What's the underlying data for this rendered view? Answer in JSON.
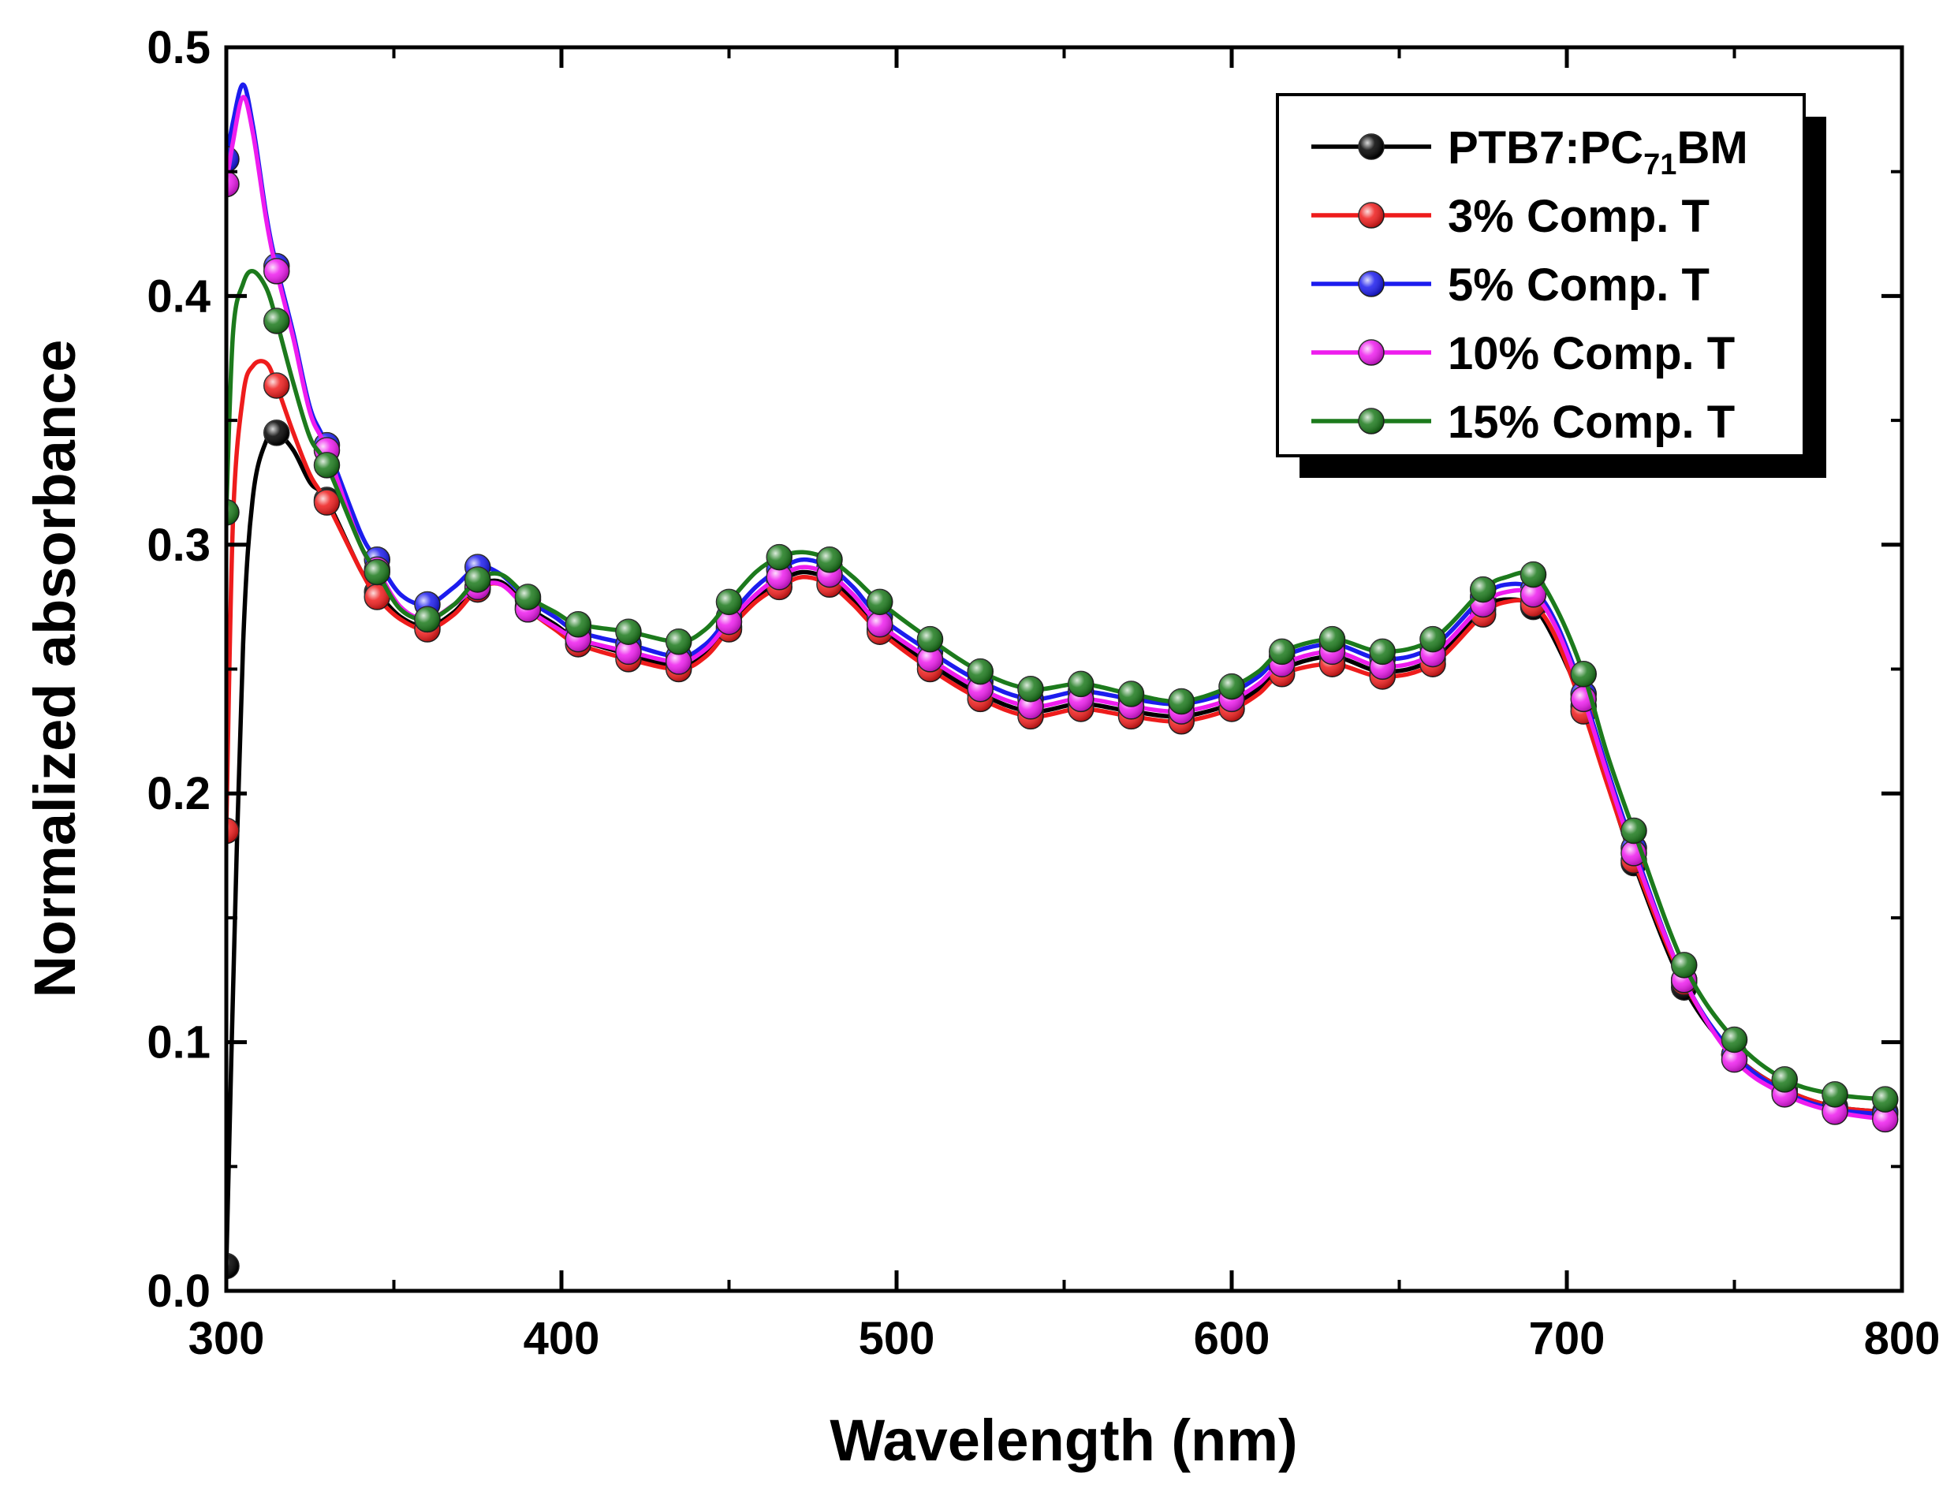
{
  "chart_data": {
    "type": "line",
    "title": "",
    "xlabel": "Wavelength (nm)",
    "ylabel": "Normalized absorbance",
    "xlim": [
      300,
      800
    ],
    "ylim": [
      0.0,
      0.5
    ],
    "x_ticks": [
      300,
      400,
      500,
      600,
      700,
      800
    ],
    "y_ticks": [
      0.0,
      0.1,
      0.2,
      0.3,
      0.4,
      0.5
    ],
    "x_tick_labels": [
      "300",
      "400",
      "500",
      "600",
      "700",
      "800"
    ],
    "y_tick_labels": [
      "0.0",
      "0.1",
      "0.2",
      "0.3",
      "0.4",
      "0.5"
    ],
    "grid": false,
    "legend_position": "top-right",
    "legend": [
      {
        "main": "PTB7:PC",
        "sub": "71",
        "tail": "BM"
      },
      {
        "main": "3% Comp. T",
        "sub": "",
        "tail": ""
      },
      {
        "main": "5% Comp. T",
        "sub": "",
        "tail": ""
      },
      {
        "main": "10% Comp. T",
        "sub": "",
        "tail": ""
      },
      {
        "main": "15% Comp. T",
        "sub": "",
        "tail": ""
      }
    ],
    "series": [
      {
        "name": "PTB7:PC71BM",
        "color": "#000000",
        "x": [
          300,
          302,
          305,
          308,
          312,
          315,
          320,
          325,
          330,
          340,
          345,
          352,
          360,
          368,
          375,
          382,
          390,
          398,
          405,
          420,
          435,
          443,
          450,
          458,
          465,
          472,
          480,
          487,
          495,
          510,
          525,
          540,
          555,
          570,
          585,
          600,
          608,
          615,
          630,
          645,
          660,
          675,
          682,
          690,
          697,
          705,
          712,
          720,
          735,
          750,
          765,
          780,
          795
        ],
        "y": [
          0.01,
          0.12,
          0.26,
          0.32,
          0.342,
          0.345,
          0.338,
          0.325,
          0.318,
          0.29,
          0.281,
          0.271,
          0.267,
          0.273,
          0.283,
          0.285,
          0.275,
          0.268,
          0.262,
          0.256,
          0.251,
          0.256,
          0.267,
          0.278,
          0.285,
          0.289,
          0.286,
          0.278,
          0.266,
          0.252,
          0.24,
          0.233,
          0.236,
          0.233,
          0.231,
          0.236,
          0.242,
          0.25,
          0.255,
          0.249,
          0.254,
          0.274,
          0.278,
          0.275,
          0.26,
          0.235,
          0.205,
          0.172,
          0.122,
          0.095,
          0.081,
          0.074,
          0.072
        ],
        "marker_x": [
          300,
          315,
          330,
          345,
          360,
          375,
          390,
          405,
          420,
          435,
          450,
          465,
          480,
          495,
          510,
          525,
          540,
          555,
          570,
          585,
          600,
          615,
          630,
          645,
          660,
          675,
          690,
          705,
          720,
          735,
          750,
          765,
          780,
          795
        ]
      },
      {
        "name": "3% Comp. T",
        "color": "#ee1c1c",
        "x": [
          300,
          302,
          305,
          308,
          312,
          315,
          320,
          325,
          330,
          340,
          345,
          352,
          360,
          368,
          375,
          382,
          390,
          398,
          405,
          420,
          435,
          443,
          450,
          458,
          465,
          472,
          480,
          487,
          495,
          510,
          525,
          540,
          555,
          570,
          585,
          600,
          608,
          615,
          630,
          645,
          660,
          675,
          682,
          690,
          697,
          705,
          712,
          720,
          735,
          750,
          765,
          780,
          795
        ],
        "y": [
          0.185,
          0.31,
          0.36,
          0.372,
          0.373,
          0.364,
          0.345,
          0.328,
          0.317,
          0.29,
          0.279,
          0.27,
          0.266,
          0.272,
          0.282,
          0.284,
          0.274,
          0.266,
          0.26,
          0.254,
          0.25,
          0.255,
          0.266,
          0.277,
          0.283,
          0.287,
          0.284,
          0.276,
          0.265,
          0.25,
          0.238,
          0.231,
          0.234,
          0.231,
          0.229,
          0.234,
          0.24,
          0.248,
          0.252,
          0.247,
          0.252,
          0.272,
          0.277,
          0.276,
          0.262,
          0.233,
          0.204,
          0.173,
          0.124,
          0.095,
          0.081,
          0.074,
          0.072
        ],
        "marker_x": [
          300,
          315,
          330,
          345,
          360,
          375,
          390,
          405,
          420,
          435,
          450,
          465,
          480,
          495,
          510,
          525,
          540,
          555,
          570,
          585,
          600,
          615,
          630,
          645,
          660,
          675,
          690,
          705,
          720,
          735,
          750,
          765,
          780,
          795
        ]
      },
      {
        "name": "5% Comp. T",
        "color": "#1c1cee",
        "x": [
          300,
          302,
          305,
          308,
          312,
          315,
          320,
          325,
          330,
          340,
          345,
          352,
          360,
          368,
          375,
          382,
          390,
          398,
          405,
          420,
          435,
          443,
          450,
          458,
          465,
          472,
          480,
          487,
          495,
          510,
          525,
          540,
          555,
          570,
          585,
          600,
          608,
          615,
          630,
          645,
          660,
          675,
          682,
          690,
          697,
          705,
          712,
          720,
          735,
          750,
          765,
          780,
          795
        ],
        "y": [
          0.455,
          0.47,
          0.485,
          0.468,
          0.432,
          0.412,
          0.385,
          0.355,
          0.34,
          0.305,
          0.294,
          0.28,
          0.276,
          0.283,
          0.291,
          0.288,
          0.278,
          0.271,
          0.265,
          0.26,
          0.255,
          0.26,
          0.271,
          0.283,
          0.29,
          0.294,
          0.291,
          0.283,
          0.271,
          0.257,
          0.245,
          0.238,
          0.241,
          0.238,
          0.236,
          0.241,
          0.247,
          0.255,
          0.26,
          0.254,
          0.259,
          0.279,
          0.284,
          0.282,
          0.268,
          0.24,
          0.21,
          0.178,
          0.125,
          0.095,
          0.08,
          0.073,
          0.071
        ],
        "marker_x": [
          300,
          315,
          330,
          345,
          360,
          375,
          390,
          405,
          420,
          435,
          450,
          465,
          480,
          495,
          510,
          525,
          540,
          555,
          570,
          585,
          600,
          615,
          630,
          645,
          660,
          675,
          690,
          705,
          720,
          735,
          750,
          765,
          780,
          795
        ]
      },
      {
        "name": "10% Comp. T",
        "color": "#ee1cee",
        "x": [
          300,
          302,
          305,
          308,
          312,
          315,
          320,
          325,
          330,
          340,
          345,
          352,
          360,
          368,
          375,
          382,
          390,
          398,
          405,
          420,
          435,
          443,
          450,
          458,
          465,
          472,
          480,
          487,
          495,
          510,
          525,
          540,
          555,
          570,
          585,
          600,
          608,
          615,
          630,
          645,
          660,
          675,
          682,
          690,
          697,
          705,
          712,
          720,
          735,
          750,
          765,
          780,
          795
        ],
        "y": [
          0.445,
          0.462,
          0.48,
          0.465,
          0.43,
          0.41,
          0.383,
          0.353,
          0.338,
          0.3,
          0.29,
          0.275,
          0.27,
          0.276,
          0.283,
          0.284,
          0.274,
          0.267,
          0.262,
          0.257,
          0.253,
          0.258,
          0.269,
          0.28,
          0.287,
          0.291,
          0.288,
          0.28,
          0.268,
          0.254,
          0.242,
          0.235,
          0.238,
          0.235,
          0.233,
          0.238,
          0.244,
          0.252,
          0.257,
          0.251,
          0.256,
          0.276,
          0.281,
          0.28,
          0.266,
          0.238,
          0.208,
          0.176,
          0.125,
          0.093,
          0.079,
          0.072,
          0.069
        ],
        "marker_x": [
          300,
          315,
          330,
          345,
          360,
          375,
          390,
          405,
          420,
          435,
          450,
          465,
          480,
          495,
          510,
          525,
          540,
          555,
          570,
          585,
          600,
          615,
          630,
          645,
          660,
          675,
          690,
          705,
          720,
          735,
          750,
          765,
          780,
          795
        ]
      },
      {
        "name": "15% Comp. T",
        "color": "#1c7a1c",
        "x": [
          300,
          302,
          305,
          308,
          312,
          315,
          320,
          325,
          330,
          340,
          345,
          352,
          360,
          368,
          375,
          382,
          390,
          398,
          405,
          420,
          435,
          443,
          450,
          458,
          465,
          472,
          480,
          487,
          495,
          510,
          525,
          540,
          555,
          570,
          585,
          600,
          608,
          615,
          630,
          645,
          660,
          675,
          682,
          690,
          697,
          705,
          712,
          720,
          735,
          750,
          765,
          780,
          795
        ],
        "y": [
          0.313,
          0.385,
          0.405,
          0.41,
          0.403,
          0.39,
          0.365,
          0.343,
          0.332,
          0.3,
          0.289,
          0.274,
          0.27,
          0.276,
          0.286,
          0.288,
          0.279,
          0.273,
          0.268,
          0.265,
          0.261,
          0.266,
          0.277,
          0.289,
          0.295,
          0.297,
          0.294,
          0.287,
          0.277,
          0.262,
          0.249,
          0.242,
          0.244,
          0.24,
          0.237,
          0.243,
          0.249,
          0.257,
          0.262,
          0.257,
          0.262,
          0.282,
          0.287,
          0.288,
          0.274,
          0.248,
          0.216,
          0.185,
          0.131,
          0.101,
          0.085,
          0.079,
          0.077
        ],
        "marker_x": [
          300,
          315,
          330,
          345,
          360,
          375,
          390,
          405,
          420,
          435,
          450,
          465,
          480,
          495,
          510,
          525,
          540,
          555,
          570,
          585,
          600,
          615,
          630,
          645,
          660,
          675,
          690,
          705,
          720,
          735,
          750,
          765,
          780,
          795
        ]
      }
    ]
  }
}
